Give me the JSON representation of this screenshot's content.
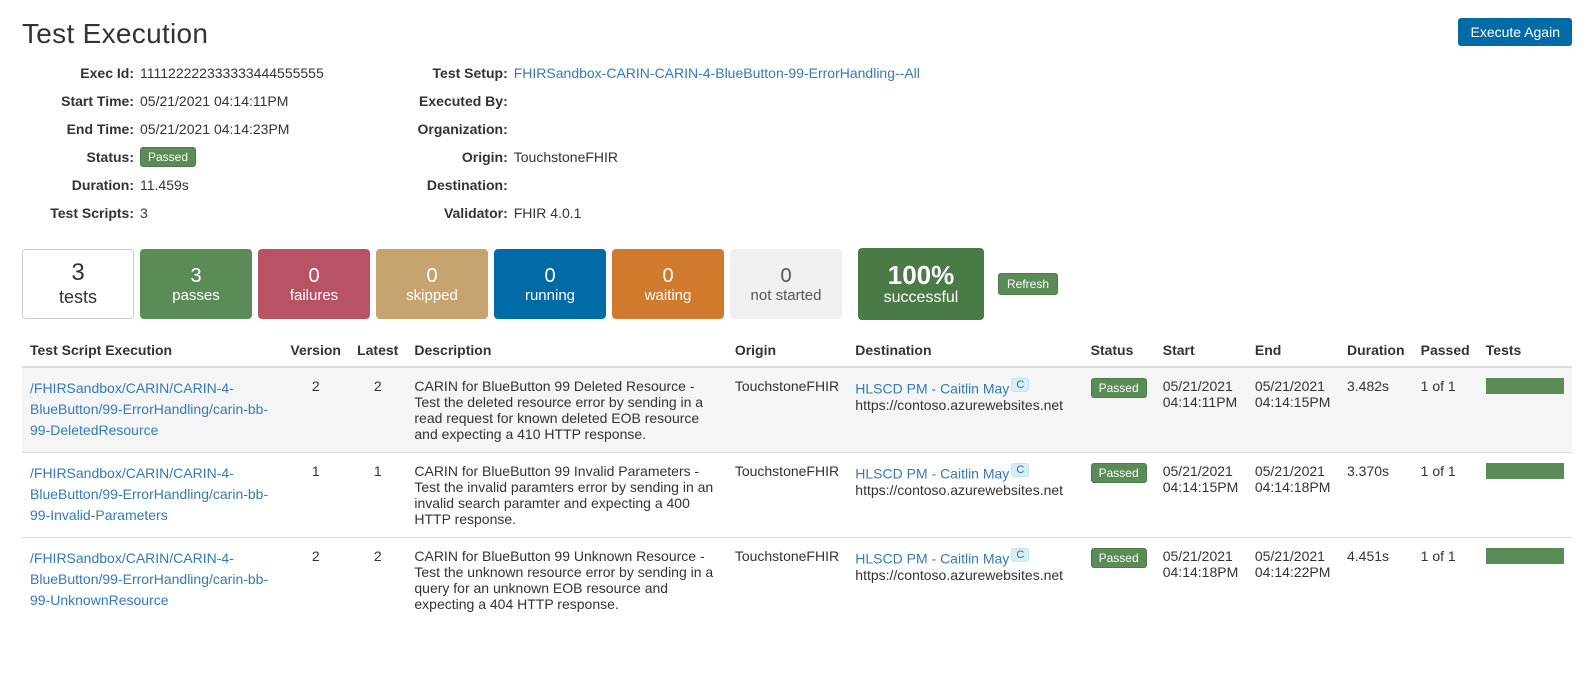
{
  "page": {
    "title": "Test Execution",
    "execute_again": "Execute Again"
  },
  "meta_left": {
    "exec_id_label": "Exec Id:",
    "exec_id": "111122222333333444555555",
    "start_time_label": "Start Time:",
    "start_time": "05/21/2021 04:14:11PM",
    "end_time_label": "End Time:",
    "end_time": "05/21/2021 04:14:23PM",
    "status_label": "Status:",
    "status_badge": "Passed",
    "duration_label": "Duration:",
    "duration": "11.459s",
    "test_scripts_label": "Test Scripts:",
    "test_scripts": "3"
  },
  "meta_right": {
    "test_setup_label": "Test Setup:",
    "test_setup": "FHIRSandbox-CARIN-CARIN-4-BlueButton-99-ErrorHandling--All",
    "executed_by_label": "Executed By:",
    "executed_by": "",
    "organization_label": "Organization:",
    "organization": "",
    "origin_label": "Origin:",
    "origin": "TouchstoneFHIR",
    "destination_label": "Destination:",
    "destination": "",
    "validator_label": "Validator:",
    "validator": "FHIR 4.0.1"
  },
  "tiles": {
    "tests_n": "3",
    "tests_lbl": "tests",
    "passes_n": "3",
    "passes_lbl": "passes",
    "passes_color": "#5b8b56",
    "failures_n": "0",
    "failures_lbl": "failures",
    "failures_color": "#b85265",
    "skipped_n": "0",
    "skipped_lbl": "skipped",
    "skipped_color": "#c6a36f",
    "running_n": "0",
    "running_lbl": "running",
    "running_color": "#006ba6",
    "waiting_n": "0",
    "waiting_lbl": "waiting",
    "waiting_color": "#cf7a2d",
    "notstarted_n": "0",
    "notstarted_lbl": "not started",
    "notstarted_bg": "#f0f0f0",
    "notstarted_fg": "#555",
    "success_pct": "100%",
    "success_lbl": "successful",
    "success_color": "#4a7a45",
    "refresh": "Refresh"
  },
  "columns": {
    "script": "Test Script Execution",
    "version": "Version",
    "latest": "Latest",
    "description": "Description",
    "origin": "Origin",
    "destination": "Destination",
    "status": "Status",
    "start": "Start",
    "end": "End",
    "duration": "Duration",
    "passed": "Passed",
    "tests": "Tests"
  },
  "rows": [
    {
      "script": "/FHIRSandbox/CARIN/CARIN-4-BlueButton/99-ErrorHandling/carin-bb-99-DeletedResource",
      "version": "2",
      "latest": "2",
      "description": "CARIN for BlueButton 99 Deleted Resource - Test the deleted resource error by sending in a read request for known deleted EOB resource and expecting a 410 HTTP response.",
      "origin": "TouchstoneFHIR",
      "dest_link": "HLSCD PM - Caitlin May",
      "dest_badge": "C",
      "dest_url": "https://contoso.azurewebsites.net",
      "status": "Passed",
      "start": "05/21/2021 04:14:11PM",
      "end": "05/21/2021 04:14:15PM",
      "duration": "3.482s",
      "passed": "1 of 1"
    },
    {
      "script": "/FHIRSandbox/CARIN/CARIN-4-BlueButton/99-ErrorHandling/carin-bb-99-Invalid-Parameters",
      "version": "1",
      "latest": "1",
      "description": "CARIN for BlueButton 99 Invalid Parameters - Test the invalid paramters error by sending in an invalid search paramter and expecting a 400 HTTP response.",
      "origin": "TouchstoneFHIR",
      "dest_link": "HLSCD PM - Caitlin May",
      "dest_badge": "C",
      "dest_url": "https://contoso.azurewebsites.net",
      "status": "Passed",
      "start": "05/21/2021 04:14:15PM",
      "end": "05/21/2021 04:14:18PM",
      "duration": "3.370s",
      "passed": "1 of 1"
    },
    {
      "script": "/FHIRSandbox/CARIN/CARIN-4-BlueButton/99-ErrorHandling/carin-bb-99-UnknownResource",
      "version": "2",
      "latest": "2",
      "description": "CARIN for BlueButton 99 Unknown Resource - Test the unknown resource error by sending in a query for an unknown EOB resource and expecting a 404 HTTP response.",
      "origin": "TouchstoneFHIR",
      "dest_link": "HLSCD PM - Caitlin May",
      "dest_badge": "C",
      "dest_url": "https://contoso.azurewebsites.net",
      "status": "Passed",
      "start": "05/21/2021 04:14:18PM",
      "end": "05/21/2021 04:14:22PM",
      "duration": "4.451s",
      "passed": "1 of 1"
    }
  ]
}
